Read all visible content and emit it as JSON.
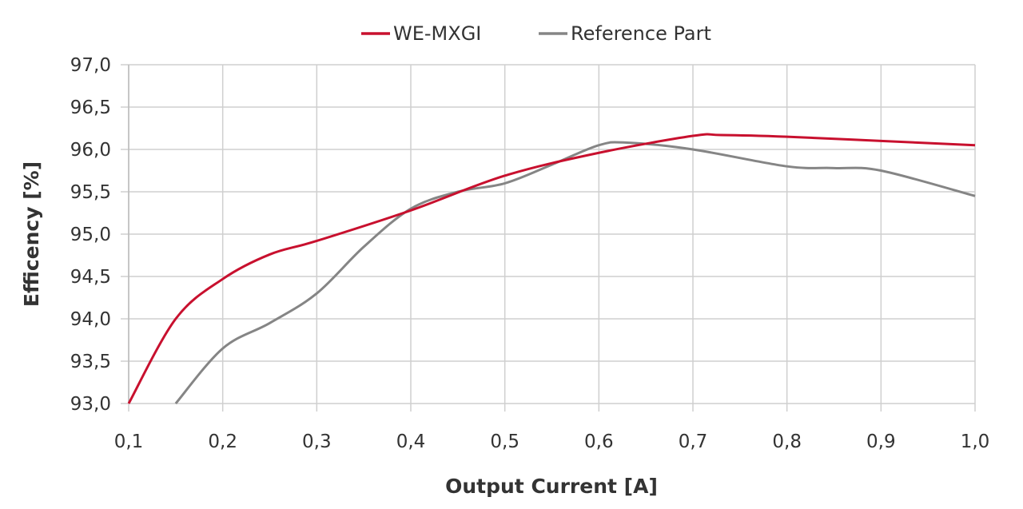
{
  "chart_data": {
    "type": "line",
    "title": "",
    "xlabel": "Output Current [A]",
    "ylabel": "Efficency [%]",
    "xlim": [
      0.1,
      1.0
    ],
    "ylim": [
      93.0,
      97.0
    ],
    "x_ticks": [
      "0,1",
      "0,2",
      "0,3",
      "0,4",
      "0,5",
      "0,6",
      "0,7",
      "0,8",
      "0,9",
      "1,0"
    ],
    "x_tick_values": [
      0.1,
      0.2,
      0.3,
      0.4,
      0.5,
      0.6,
      0.7,
      0.8,
      0.9,
      1.0
    ],
    "y_ticks": [
      "93,0",
      "93,5",
      "94,0",
      "94,5",
      "95,0",
      "95,5",
      "96,0",
      "96,5",
      "97,0"
    ],
    "y_tick_values": [
      93.0,
      93.5,
      94.0,
      94.5,
      95.0,
      95.5,
      96.0,
      96.5,
      97.0
    ],
    "grid": true,
    "legend_position": "top-center",
    "series": [
      {
        "name": "WE-MXGI",
        "color": "#c8102e",
        "x": [
          0.1,
          0.15,
          0.2,
          0.25,
          0.3,
          0.4,
          0.5,
          0.6,
          0.7,
          0.73,
          0.8,
          0.9,
          1.0
        ],
        "y": [
          93.0,
          94.0,
          94.47,
          94.76,
          94.92,
          95.28,
          95.69,
          95.96,
          96.16,
          96.17,
          96.15,
          96.1,
          96.05
        ]
      },
      {
        "name": "Reference Part",
        "color": "#858585",
        "x": [
          0.15,
          0.2,
          0.25,
          0.3,
          0.35,
          0.4,
          0.45,
          0.5,
          0.55,
          0.6,
          0.63,
          0.7,
          0.8,
          0.85,
          0.9,
          1.0
        ],
        "y": [
          93.0,
          93.65,
          93.95,
          94.3,
          94.85,
          95.3,
          95.5,
          95.6,
          95.82,
          96.05,
          96.08,
          96.0,
          95.8,
          95.78,
          95.75,
          95.45
        ]
      }
    ]
  }
}
